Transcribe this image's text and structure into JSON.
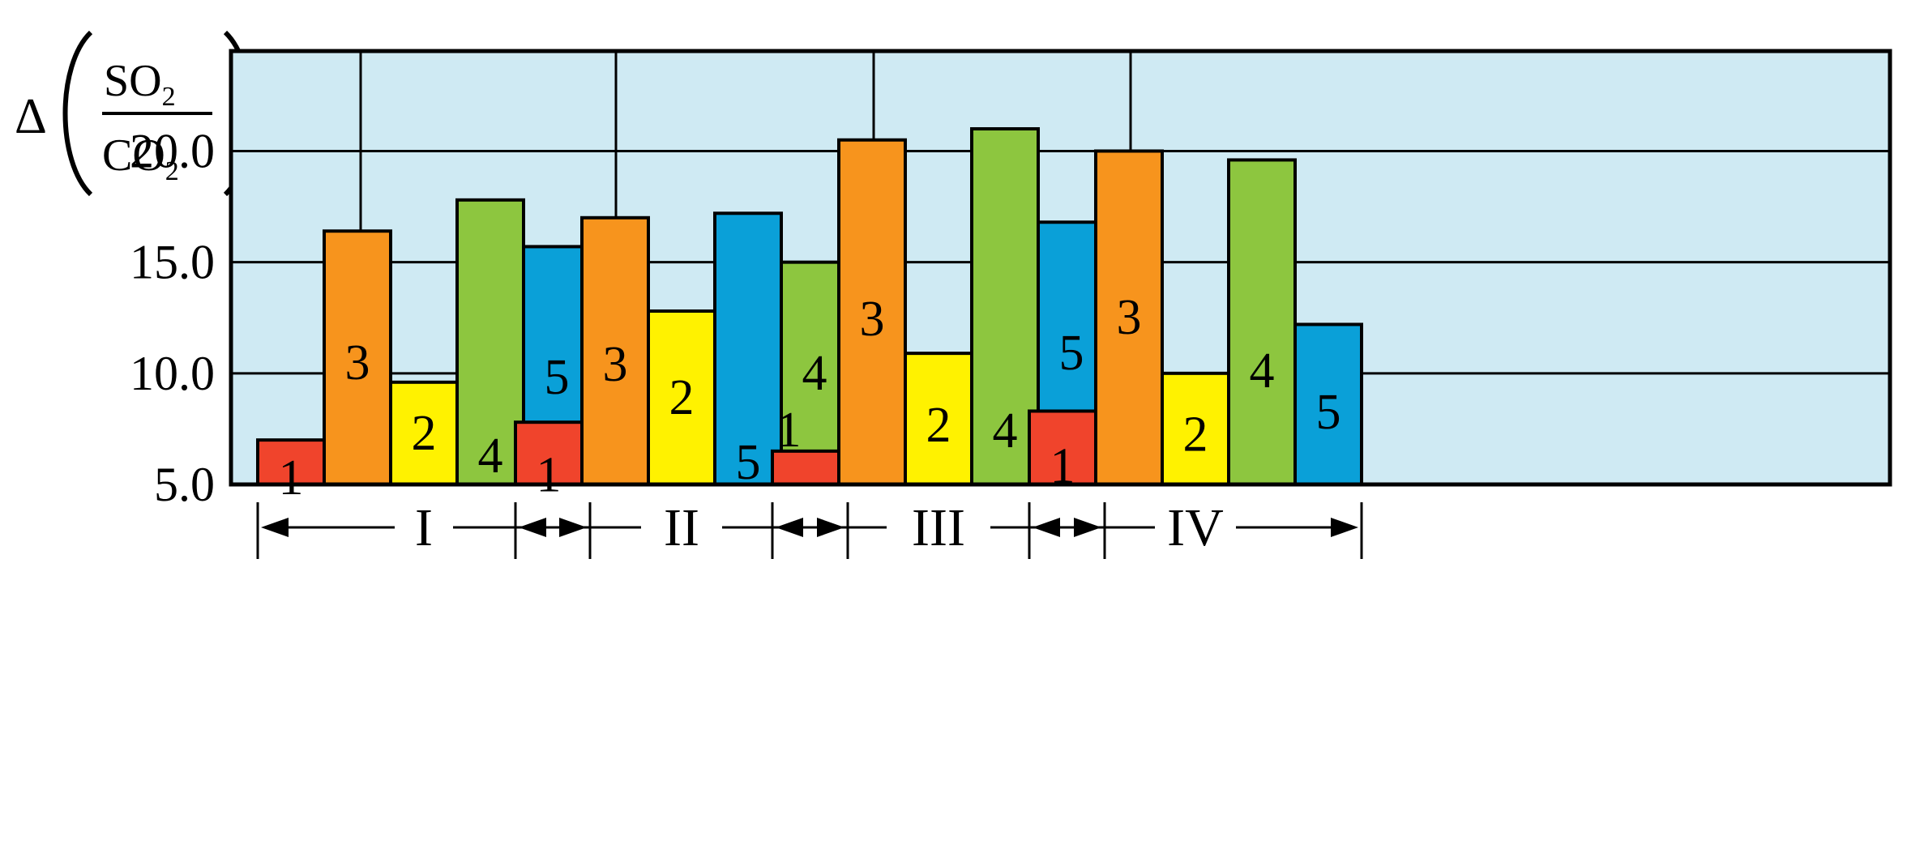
{
  "chart_data": {
    "type": "bar",
    "title": "",
    "xlabel": "",
    "ylabel": {
      "prefix": "Δ",
      "numerator": "SO",
      "denominator": "CO",
      "subscript": "2",
      "unit": ",%"
    },
    "ylim": [
      5.0,
      24.5
    ],
    "yticks": [
      "5.0",
      "10.0",
      "15.0",
      "20.0"
    ],
    "ytick_values": [
      5,
      10,
      15,
      20
    ],
    "grid": true,
    "plot_background": "#cfeaf3",
    "colors": {
      "1": "#f0442c",
      "2": "#fff200",
      "3": "#f7941d",
      "4": "#8dc63f",
      "5": "#0aa0d8"
    },
    "groups": [
      {
        "label": "I",
        "bars": [
          {
            "series": "1",
            "value": 7.0
          },
          {
            "series": "3",
            "value": 16.4
          },
          {
            "series": "2",
            "value": 9.6
          },
          {
            "series": "4",
            "value": 17.8
          },
          {
            "series": "5",
            "value": 15.7
          }
        ]
      },
      {
        "label": "II",
        "bars": [
          {
            "series": "1",
            "value": 7.8
          },
          {
            "series": "3",
            "value": 17.0
          },
          {
            "series": "2",
            "value": 12.8
          },
          {
            "series": "5",
            "value": 17.2
          },
          {
            "series": "4",
            "value": 15.0
          }
        ]
      },
      {
        "label": "III",
        "bars": [
          {
            "series": "1",
            "value": 6.5
          },
          {
            "series": "3",
            "value": 20.5
          },
          {
            "series": "2",
            "value": 10.9
          },
          {
            "series": "4",
            "value": 21.0
          },
          {
            "series": "5",
            "value": 16.8
          }
        ]
      },
      {
        "label": "IV",
        "bars": [
          {
            "series": "1",
            "value": 8.3
          },
          {
            "series": "3",
            "value": 20.0
          },
          {
            "series": "2",
            "value": 10.0
          },
          {
            "series": "4",
            "value": 19.6
          },
          {
            "series": "5",
            "value": 12.2
          }
        ]
      }
    ]
  }
}
